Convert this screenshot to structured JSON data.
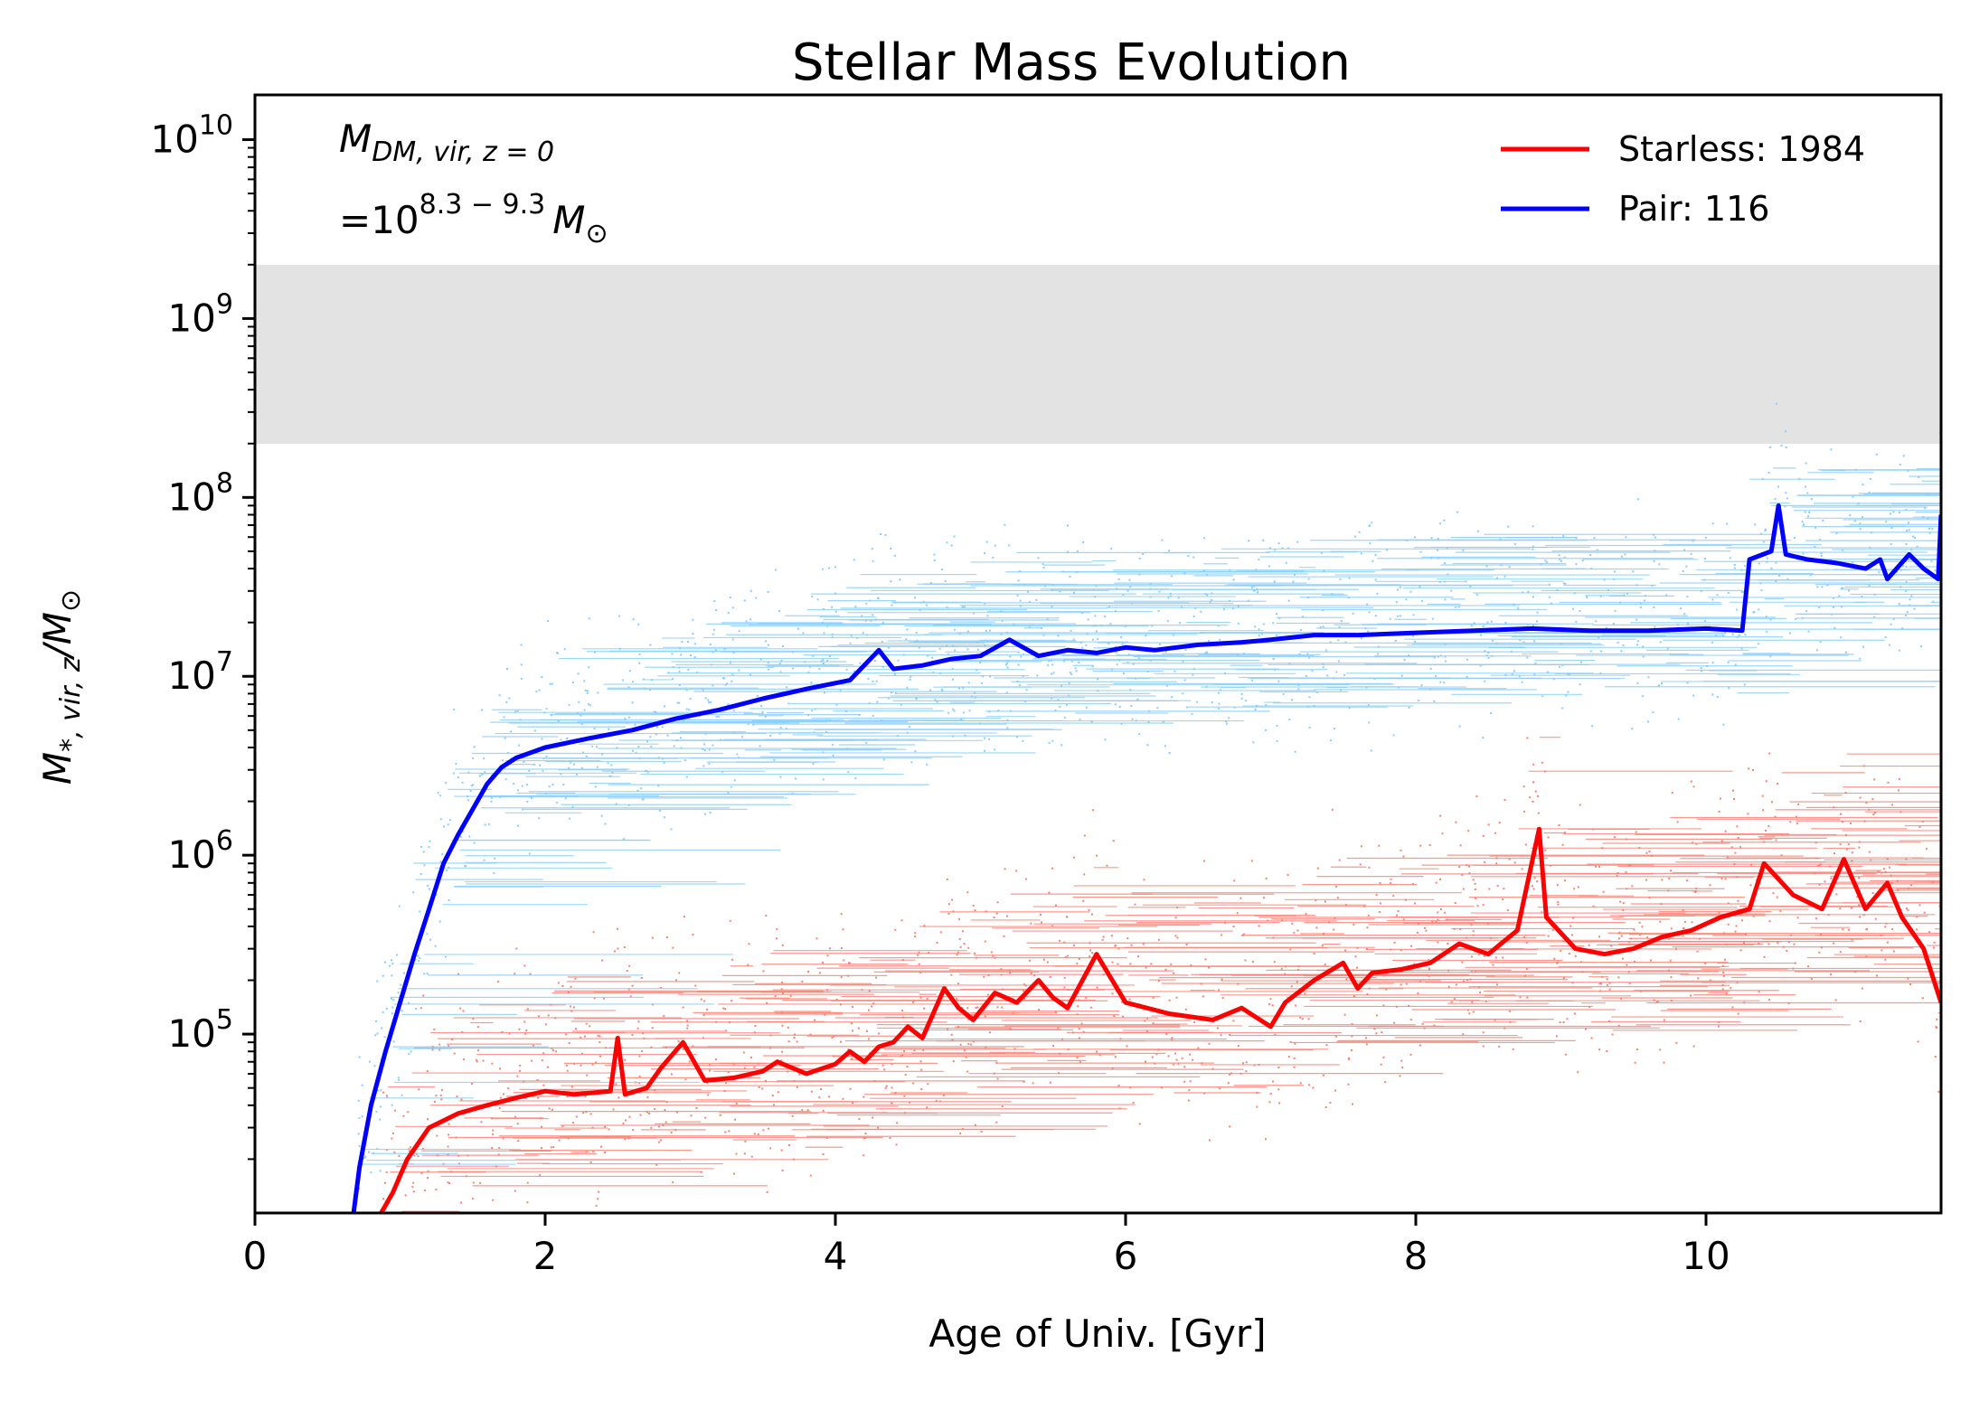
{
  "chart_data": {
    "type": "line",
    "title": "Stellar Mass Evolution",
    "xlabel": "Age of Univ. [Gyr]",
    "ylabel": {
      "base": "M",
      "subscript": "*, vir, z",
      "divider": "/M",
      "sun": "⊙"
    },
    "xlim": [
      0,
      11.62
    ],
    "ylim_log10": [
      4.0,
      10.25
    ],
    "yscale": "log",
    "x_ticks": [
      "0",
      "2",
      "4",
      "6",
      "8",
      "10"
    ],
    "x_tick_values": [
      0,
      2,
      4,
      6,
      8,
      10
    ],
    "y_ticks": [
      {
        "base": "10",
        "exp": "5",
        "log": 5
      },
      {
        "base": "10",
        "exp": "6",
        "log": 6
      },
      {
        "base": "10",
        "exp": "7",
        "log": 7
      },
      {
        "base": "10",
        "exp": "8",
        "log": 8
      },
      {
        "base": "10",
        "exp": "9",
        "log": 9
      },
      {
        "base": "10",
        "exp": "10",
        "log": 10
      }
    ],
    "shaded_band_log10": [
      8.3,
      9.3
    ],
    "annotation": {
      "line1_base": "M",
      "line1_sub": "DM, vir, z = 0",
      "line2_prefix": "=10",
      "line2_exp": "8.3 − 9.3",
      "line2_unit": "M",
      "line2_sun": "⊙"
    },
    "legend_position": "top-right",
    "series": [
      {
        "name": "Starless: 1984",
        "color": "#ff0000",
        "scatter_color": "#fa8072",
        "x": [
          0.87,
          0.95,
          1.05,
          1.2,
          1.4,
          1.6,
          1.8,
          2.0,
          2.2,
          2.45,
          2.5,
          2.55,
          2.7,
          2.8,
          2.95,
          3.1,
          3.3,
          3.5,
          3.6,
          3.8,
          4.0,
          4.1,
          4.2,
          4.3,
          4.4,
          4.5,
          4.6,
          4.75,
          4.85,
          4.95,
          5.1,
          5.25,
          5.4,
          5.5,
          5.6,
          5.8,
          6.0,
          6.3,
          6.6,
          6.8,
          7.0,
          7.1,
          7.3,
          7.5,
          7.6,
          7.7,
          7.9,
          8.1,
          8.3,
          8.5,
          8.7,
          8.85,
          8.9,
          9.1,
          9.3,
          9.5,
          9.7,
          9.9,
          10.1,
          10.3,
          10.4,
          10.6,
          10.8,
          10.95,
          11.1,
          11.25,
          11.35,
          11.5,
          11.62
        ],
        "y": [
          10000,
          13000,
          20000,
          30000,
          36000,
          40000,
          44000,
          48000,
          46000,
          48000,
          95000,
          46000,
          50000,
          65000,
          90000,
          55000,
          57000,
          62000,
          70000,
          60000,
          68000,
          80000,
          70000,
          85000,
          90000,
          110000,
          95000,
          180000,
          140000,
          120000,
          170000,
          150000,
          200000,
          160000,
          140000,
          280000,
          150000,
          130000,
          120000,
          140000,
          110000,
          150000,
          200000,
          250000,
          180000,
          220000,
          230000,
          250000,
          320000,
          280000,
          380000,
          1400000,
          450000,
          300000,
          280000,
          300000,
          350000,
          380000,
          450000,
          500000,
          900000,
          600000,
          500000,
          950000,
          500000,
          700000,
          450000,
          300000,
          150000
        ]
      },
      {
        "name": "Pair: 116",
        "color": "#0000ff",
        "scatter_color": "#87cefa",
        "x": [
          0.68,
          0.72,
          0.8,
          0.9,
          1.0,
          1.1,
          1.2,
          1.3,
          1.4,
          1.5,
          1.6,
          1.7,
          1.8,
          2.0,
          2.3,
          2.6,
          2.9,
          3.2,
          3.5,
          3.8,
          4.1,
          4.3,
          4.4,
          4.6,
          4.8,
          5.0,
          5.2,
          5.4,
          5.6,
          5.8,
          6.0,
          6.2,
          6.5,
          6.8,
          7.0,
          7.3,
          7.6,
          8.0,
          8.4,
          8.8,
          9.2,
          9.6,
          10.0,
          10.25,
          10.3,
          10.45,
          10.5,
          10.55,
          10.7,
          10.9,
          11.1,
          11.2,
          11.25,
          11.4,
          11.5,
          11.6,
          11.62
        ],
        "y": [
          10000,
          18000,
          40000,
          80000,
          150000,
          280000,
          500000,
          900000,
          1300000,
          1800000,
          2500000,
          3100000,
          3500000,
          4000000,
          4500000,
          5000000,
          5800000,
          6500000,
          7500000,
          8500000,
          9500000,
          14000000,
          11000000,
          11500000,
          12500000,
          13000000,
          16000000,
          13000000,
          14000000,
          13500000,
          14500000,
          14000000,
          15000000,
          15500000,
          16000000,
          17000000,
          17000000,
          17500000,
          18000000,
          18500000,
          18000000,
          18000000,
          18500000,
          18000000,
          45000000,
          50000000,
          90000000,
          48000000,
          45000000,
          43000000,
          40000000,
          45000000,
          35000000,
          48000000,
          40000000,
          35000000,
          80000000
        ]
      }
    ]
  }
}
